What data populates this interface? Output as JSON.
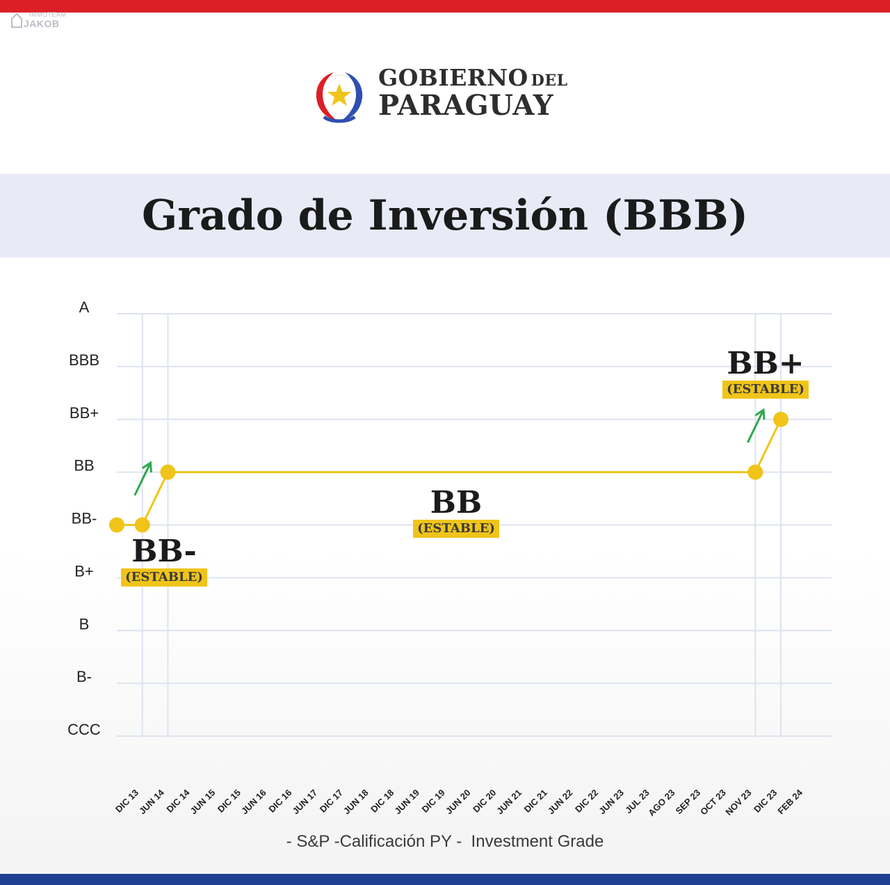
{
  "watermark": {
    "line1": "IMMOTEAM",
    "line2": "JAKOB"
  },
  "logo": {
    "line1": "GOBIERNO",
    "line1_small": "DEL",
    "line2": "PARAGUAY",
    "icon": "paraguay-seal-icon"
  },
  "header": {
    "title": "Grado de Inversión (BBB)"
  },
  "chart_data": {
    "type": "line",
    "title": "Grado de Inversión (BBB)",
    "y_categories": [
      "CCC",
      "B-",
      "B",
      "B+",
      "BB-",
      "BB",
      "BB+",
      "BBB",
      "A"
    ],
    "x": [
      "DIC 13",
      "JUN 14",
      "DIC 14",
      "JUN 15",
      "DIC 15",
      "JUN 16",
      "DIC 16",
      "JUN 17",
      "DIC 17",
      "JUN 18",
      "DIC 18",
      "JUN 19",
      "DIC 19",
      "JUN 20",
      "DIC 20",
      "JUN 21",
      "DIC 21",
      "JUN 22",
      "DIC 22",
      "JUN 23",
      "JUL 23",
      "AGO 23",
      "SEP 23",
      "OCT 23",
      "NOV 23",
      "DIC 23",
      "FEB 24"
    ],
    "series": [
      {
        "values": [
          "BB-",
          "BB-",
          "BB",
          "BB",
          "BB",
          "BB",
          "BB",
          "BB",
          "BB",
          "BB",
          "BB",
          "BB",
          "BB",
          "BB",
          "BB",
          "BB",
          "BB",
          "BB",
          "BB",
          "BB",
          "BB",
          "BB",
          "BB",
          "BB",
          "BB",
          "BB",
          "BB+"
        ]
      }
    ],
    "markers": [
      "DIC 13",
      "JUN 14",
      "DIC 14",
      "DIC 23",
      "FEB 24"
    ],
    "upgrades": [
      "DIC 14",
      "FEB 24"
    ],
    "line_color": "#f0c419",
    "arrow_color": "#2fa84f",
    "grid": true,
    "annotations": [
      {
        "rating": "BB-",
        "outlook": "(ESTABLE)"
      },
      {
        "rating": "BB",
        "outlook": "(ESTABLE)"
      },
      {
        "rating": "BB+",
        "outlook": "(ESTABLE)"
      }
    ],
    "source_note": "- S&P -Calificación PY -  Investment Grade"
  }
}
